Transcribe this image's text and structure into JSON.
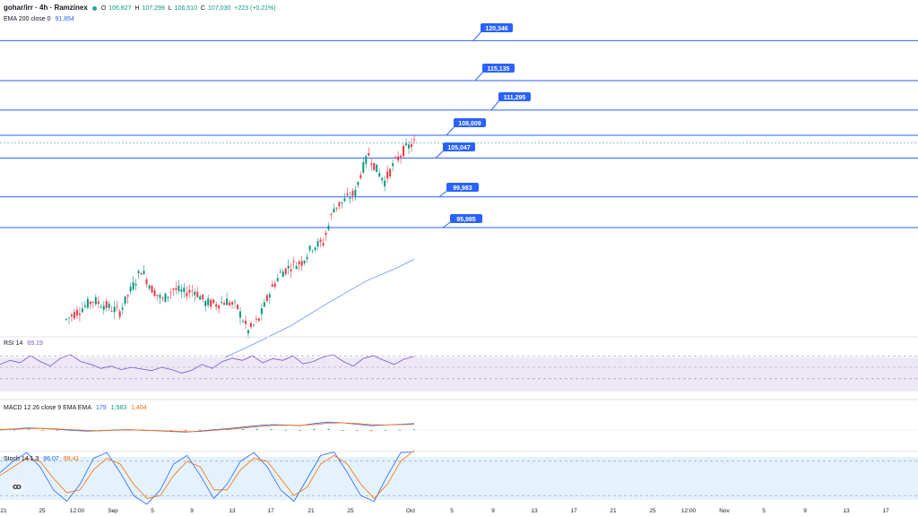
{
  "header": {
    "symbol": "gohar/irr · 4h · Ramzinex",
    "status_dot_color": "#26a69a",
    "ohlc": {
      "o_label": "O",
      "o": "106,827",
      "h_label": "H",
      "h": "107,299",
      "l_label": "L",
      "l": "106,510",
      "c_label": "C",
      "c": "107,030",
      "change": "+223 (+0.21%)"
    },
    "ema": {
      "label": "EMA 200 close 0",
      "value": "91,854"
    }
  },
  "indicators": {
    "rsi": {
      "label": "RSI 14",
      "value": "69.19"
    },
    "macd": {
      "label": "MACD 12 26 close 9 EMA EMA",
      "v1": "179",
      "v2": "1,583",
      "v3": "1,404"
    },
    "stoch": {
      "label": "Stoch 14 1 3",
      "k": "96.07",
      "d": "99.41"
    }
  },
  "colors": {
    "up": "#089981",
    "down": "#f23645",
    "level_line": "#2962ff",
    "ema": "#2962ff",
    "rsi_line": "#7e57c2",
    "rsi_band": "#ede7f6",
    "stoch_band": "#e3f2fd",
    "label_bg": "#2962ff"
  },
  "chart_data": {
    "type": "candlestick",
    "price_levels": [
      "120,346",
      "115,135",
      "111,295",
      "108,009",
      "105,047",
      "99,983",
      "95,985"
    ],
    "x_ticks": [
      "21",
      "25",
      "12:00",
      "Sep",
      "5",
      "9",
      "13",
      "17",
      "21",
      "25",
      "Oct",
      "5",
      "9",
      "13",
      "17",
      "21",
      "25",
      "12:00",
      "Nov",
      "5",
      "9",
      "13",
      "17"
    ],
    "price_path": [
      [
        0,
        84000
      ],
      [
        10,
        86500
      ],
      [
        20,
        85000
      ],
      [
        28,
        90500
      ],
      [
        32,
        88000
      ],
      [
        36,
        86500
      ],
      [
        40,
        88000
      ],
      [
        44,
        87500
      ],
      [
        48,
        87800
      ],
      [
        52,
        86200
      ],
      [
        56,
        86000
      ],
      [
        60,
        86400
      ],
      [
        64,
        85500
      ],
      [
        68,
        82500
      ],
      [
        72,
        84000
      ],
      [
        76,
        87500
      ],
      [
        80,
        90000
      ],
      [
        84,
        91000
      ],
      [
        88,
        91500
      ],
      [
        92,
        93500
      ],
      [
        96,
        94000
      ],
      [
        100,
        98500
      ],
      [
        104,
        99500
      ],
      [
        108,
        100500
      ],
      [
        110,
        103000
      ],
      [
        113,
        105500
      ],
      [
        116,
        103500
      ],
      [
        119,
        102000
      ],
      [
        122,
        104000
      ],
      [
        126,
        106000
      ],
      [
        130,
        107030
      ]
    ],
    "ema_path": [
      [
        56,
        78500
      ],
      [
        70,
        80800
      ],
      [
        84,
        83200
      ],
      [
        98,
        86200
      ],
      [
        112,
        89000
      ],
      [
        124,
        90800
      ],
      [
        130,
        91854
      ]
    ],
    "rsi": {
      "levels": [
        70,
        50,
        30
      ],
      "points": [
        55,
        62,
        58,
        70,
        60,
        52,
        66,
        72,
        60,
        55,
        48,
        52,
        46,
        50,
        47,
        44,
        50,
        46,
        40,
        45,
        55,
        48,
        60,
        66,
        62,
        70,
        58,
        65,
        62,
        70,
        56,
        60,
        68,
        72,
        60,
        52,
        66,
        70,
        62,
        55,
        64,
        69
      ]
    },
    "macd": {
      "macd": [
        10,
        30,
        60,
        40,
        20,
        -10,
        -30,
        -20,
        0,
        10,
        -5,
        -20,
        -40,
        -60,
        -30,
        10,
        40,
        80,
        120,
        150,
        140,
        120,
        180,
        220,
        200,
        160,
        120,
        140,
        160,
        179
      ],
      "signal": [
        5,
        20,
        40,
        45,
        30,
        10,
        -10,
        -20,
        -10,
        0,
        -5,
        -15,
        -30,
        -45,
        -40,
        -10,
        20,
        55,
        90,
        125,
        135,
        130,
        150,
        190,
        200,
        180,
        150,
        140,
        150,
        160
      ]
    },
    "stoch": {
      "levels": [
        80,
        20
      ],
      "k": [
        60,
        80,
        95,
        70,
        30,
        10,
        40,
        85,
        95,
        60,
        20,
        5,
        30,
        75,
        90,
        55,
        15,
        40,
        80,
        95,
        70,
        30,
        10,
        50,
        90,
        96,
        60,
        20,
        10,
        55,
        95,
        96
      ],
      "d": [
        55,
        70,
        85,
        80,
        50,
        25,
        30,
        65,
        85,
        75,
        40,
        15,
        20,
        55,
        80,
        70,
        30,
        30,
        65,
        85,
        80,
        50,
        20,
        35,
        75,
        90,
        75,
        40,
        15,
        40,
        80,
        99
      ]
    }
  }
}
